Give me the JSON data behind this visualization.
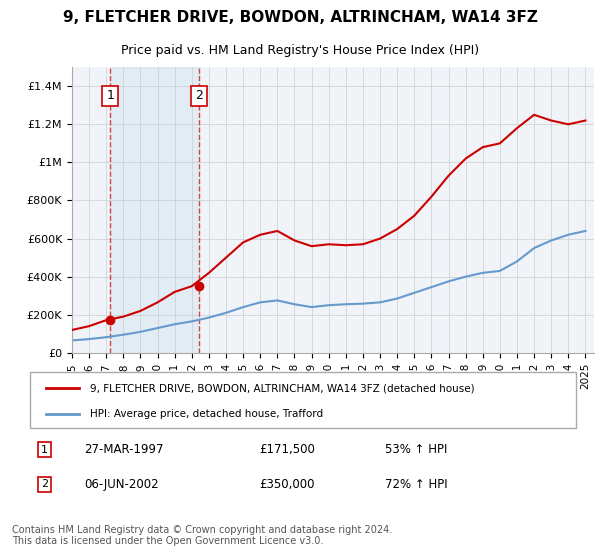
{
  "title": "9, FLETCHER DRIVE, BOWDON, ALTRINCHAM, WA14 3FZ",
  "subtitle": "Price paid vs. HM Land Registry's House Price Index (HPI)",
  "xlabel": "",
  "ylabel": "",
  "ylim": [
    0,
    1500000
  ],
  "yticks": [
    0,
    200000,
    400000,
    600000,
    800000,
    1000000,
    1200000,
    1400000
  ],
  "ytick_labels": [
    "£0",
    "£200K",
    "£400K",
    "£600K",
    "£800K",
    "£1M",
    "£1.2M",
    "£1.4M"
  ],
  "xlim_start": 1995.0,
  "xlim_end": 2025.5,
  "xticks": [
    1995,
    1996,
    1997,
    1998,
    1999,
    2000,
    2001,
    2002,
    2003,
    2004,
    2005,
    2006,
    2007,
    2008,
    2009,
    2010,
    2011,
    2012,
    2013,
    2014,
    2015,
    2016,
    2017,
    2018,
    2019,
    2020,
    2021,
    2022,
    2023,
    2024,
    2025
  ],
  "purchase1_year": 1997.23,
  "purchase1_price": 171500,
  "purchase2_year": 2002.43,
  "purchase2_price": 350000,
  "legend_line1": "9, FLETCHER DRIVE, BOWDON, ALTRINCHAM, WA14 3FZ (detached house)",
  "legend_line2": "HPI: Average price, detached house, Trafford",
  "annotation1_num": "1",
  "annotation1_date": "27-MAR-1997",
  "annotation1_price": "£171,500",
  "annotation1_hpi": "53% ↑ HPI",
  "annotation2_num": "2",
  "annotation2_date": "06-JUN-2002",
  "annotation2_price": "£350,000",
  "annotation2_hpi": "72% ↑ HPI",
  "footer": "Contains HM Land Registry data © Crown copyright and database right 2024.\nThis data is licensed under the Open Government Licence v3.0.",
  "red_color": "#cc0000",
  "blue_color": "#6699cc",
  "bg_color": "#ffffff",
  "grid_color": "#cccccc",
  "plot_bg": "#f0f4f8",
  "hpi_years": [
    1995,
    1996,
    1997,
    1998,
    1999,
    2000,
    2001,
    2002,
    2003,
    2004,
    2005,
    2006,
    2007,
    2008,
    2009,
    2010,
    2011,
    2012,
    2013,
    2014,
    2015,
    2016,
    2017,
    2018,
    2019,
    2020,
    2021,
    2022,
    2023,
    2024,
    2025
  ],
  "hpi_values": [
    65000,
    72000,
    82000,
    95000,
    110000,
    130000,
    150000,
    165000,
    185000,
    210000,
    240000,
    265000,
    275000,
    255000,
    240000,
    250000,
    255000,
    258000,
    265000,
    285000,
    315000,
    345000,
    375000,
    400000,
    420000,
    430000,
    480000,
    550000,
    590000,
    620000,
    640000
  ],
  "price_years": [
    1995,
    1996,
    1997,
    1998,
    1999,
    2000,
    2001,
    2002,
    2003,
    2004,
    2005,
    2006,
    2007,
    2008,
    2009,
    2010,
    2011,
    2012,
    2013,
    2014,
    2015,
    2016,
    2017,
    2018,
    2019,
    2020,
    2021,
    2022,
    2023,
    2024,
    2025
  ],
  "price_values": [
    120000,
    140000,
    171500,
    190000,
    220000,
    265000,
    320000,
    350000,
    420000,
    500000,
    580000,
    620000,
    640000,
    590000,
    560000,
    570000,
    565000,
    570000,
    600000,
    650000,
    720000,
    820000,
    930000,
    1020000,
    1080000,
    1100000,
    1180000,
    1250000,
    1220000,
    1200000,
    1220000
  ]
}
